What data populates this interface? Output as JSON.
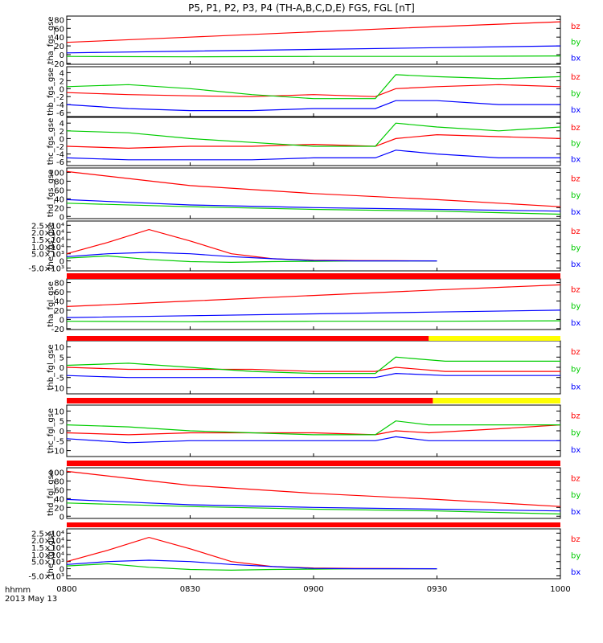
{
  "title": "P5, P1, P2, P3, P4 (TH-A,B,C,D,E) FGS, FGL [nT]",
  "time_axis": {
    "ticks": [
      "0800",
      "0830",
      "0900",
      "0930",
      "1000"
    ],
    "label_line1": "hhmm",
    "label_line2": "2013 May 13"
  },
  "colors": {
    "bz": "#ff0000",
    "by": "#00cc00",
    "bx": "#0000ff",
    "bar_red": "#ff0000",
    "bar_yellow": "#ffff00",
    "frame": "#000000"
  },
  "legend": [
    "bz",
    "by",
    "bx"
  ],
  "chart_data": [
    {
      "type": "line",
      "ylabel": "tha_fgs_gse",
      "ticks": [
        "80",
        "60",
        "40",
        "20",
        "0",
        "-20"
      ],
      "ylim": [
        -22,
        88
      ],
      "x": [
        800,
        830,
        900,
        930,
        1000
      ],
      "series": [
        {
          "name": "bz",
          "values": [
            28,
            40,
            52,
            64,
            75
          ]
        },
        {
          "name": "by",
          "values": [
            -4,
            -5,
            -4,
            -4,
            -3
          ]
        },
        {
          "name": "bx",
          "values": [
            4,
            8,
            12,
            16,
            20
          ]
        }
      ]
    },
    {
      "type": "line",
      "ylabel": "thb_fgs_gse",
      "ticks": [
        "4",
        "2",
        "0",
        "-2",
        "-4",
        "-6"
      ],
      "ylim": [
        -7,
        5.5
      ],
      "x": [
        800,
        815,
        830,
        845,
        900,
        915,
        920,
        930,
        945,
        1000
      ],
      "series": [
        {
          "name": "bz",
          "values": [
            -1,
            -1.5,
            -1.8,
            -2,
            -1.5,
            -2,
            0,
            0.5,
            1,
            0.5
          ]
        },
        {
          "name": "by",
          "values": [
            0.5,
            1,
            0,
            -1.5,
            -2.5,
            -2.5,
            3.5,
            3,
            2.5,
            3
          ]
        },
        {
          "name": "bx",
          "values": [
            -4,
            -5,
            -5.5,
            -5.5,
            -5,
            -5,
            -3,
            -3,
            -4,
            -4
          ]
        }
      ]
    },
    {
      "type": "line",
      "ylabel": "thc_fgs_gse",
      "ticks": [
        "4",
        "2",
        "0",
        "-2",
        "-4",
        "-6"
      ],
      "ylim": [
        -7,
        5.5
      ],
      "x": [
        800,
        815,
        830,
        845,
        900,
        915,
        920,
        930,
        945,
        1000
      ],
      "series": [
        {
          "name": "bz",
          "values": [
            -2,
            -2.5,
            -2,
            -2,
            -1.5,
            -2,
            0,
            1,
            0.5,
            0
          ]
        },
        {
          "name": "by",
          "values": [
            2,
            1.5,
            0,
            -1,
            -2,
            -2,
            4,
            3,
            2,
            3
          ]
        },
        {
          "name": "bx",
          "values": [
            -5,
            -5.5,
            -5.5,
            -5.5,
            -5,
            -5,
            -3,
            -4,
            -5,
            -5
          ]
        }
      ]
    },
    {
      "type": "line",
      "ylabel": "thd_fgs_gse",
      "ticks": [
        "100",
        "80",
        "60",
        "40",
        "20",
        "0"
      ],
      "ylim": [
        -5,
        110
      ],
      "x": [
        800,
        830,
        900,
        930,
        1000
      ],
      "series": [
        {
          "name": "bz",
          "values": [
            102,
            70,
            52,
            38,
            22
          ]
        },
        {
          "name": "by",
          "values": [
            30,
            22,
            16,
            12,
            5
          ]
        },
        {
          "name": "bx",
          "values": [
            38,
            26,
            20,
            16,
            12
          ]
        }
      ]
    },
    {
      "type": "line",
      "ylabel": "the_fgs_gse",
      "ticks": [
        "2.5×10⁴",
        "2.0×10⁴",
        "1.5×10⁴",
        "1.0×10⁴",
        "5.0×10³",
        "0",
        "-5.0×10³"
      ],
      "ylim": [
        -7000,
        28000
      ],
      "x": [
        800,
        810,
        820,
        830,
        840,
        850,
        900,
        910,
        920,
        930
      ],
      "series": [
        {
          "name": "bz",
          "values": [
            5000,
            13000,
            22000,
            14000,
            5000,
            1500,
            500,
            200,
            100,
            0
          ]
        },
        {
          "name": "by",
          "values": [
            2000,
            3500,
            1000,
            -500,
            -1000,
            -500,
            -300,
            0,
            0,
            0
          ]
        },
        {
          "name": "bx",
          "values": [
            3000,
            5000,
            6000,
            5000,
            3000,
            1500,
            200,
            0,
            0,
            0
          ]
        }
      ]
    },
    {
      "type": "line",
      "ylabel": "tha_fgl_gse",
      "ticks": [
        "80",
        "60",
        "40",
        "20",
        "0",
        "-20"
      ],
      "ylim": [
        -22,
        88
      ],
      "x": [
        800,
        830,
        900,
        930,
        1000
      ],
      "series": [
        {
          "name": "bz",
          "values": [
            28,
            40,
            52,
            64,
            75
          ]
        },
        {
          "name": "by",
          "values": [
            -4,
            -5,
            -4,
            -4,
            -3
          ]
        },
        {
          "name": "bx",
          "values": [
            4,
            8,
            12,
            16,
            20
          ]
        }
      ]
    },
    {
      "type": "line",
      "ylabel": "thb_fgl_gse",
      "ticks": [
        "10",
        "5",
        "0",
        "-5",
        "-10"
      ],
      "ylim": [
        -13,
        13
      ],
      "x": [
        800,
        815,
        830,
        845,
        900,
        915,
        920,
        932,
        945,
        1000
      ],
      "series": [
        {
          "name": "bz",
          "values": [
            0,
            -1,
            -1,
            -1,
            -2,
            -2,
            0,
            -2,
            -2,
            -2
          ]
        },
        {
          "name": "by",
          "values": [
            1,
            2,
            0,
            -2,
            -3,
            -3,
            5,
            3,
            3,
            3
          ]
        },
        {
          "name": "bx",
          "values": [
            -4,
            -5,
            -5,
            -5,
            -5,
            -5,
            -3,
            -4,
            -4,
            -4
          ]
        }
      ]
    },
    {
      "type": "line",
      "ylabel": "thc_fgl_gse",
      "ticks": [
        "10",
        "5",
        "0",
        "-5",
        "-10"
      ],
      "ylim": [
        -13,
        13
      ],
      "x": [
        800,
        815,
        830,
        845,
        900,
        915,
        920,
        928,
        945,
        1000
      ],
      "series": [
        {
          "name": "bz",
          "values": [
            -1,
            -2,
            -1,
            -1,
            -1,
            -2,
            0,
            -1,
            1,
            3
          ]
        },
        {
          "name": "by",
          "values": [
            3,
            2,
            0,
            -1,
            -2,
            -2,
            5,
            3,
            3,
            3
          ]
        },
        {
          "name": "bx",
          "values": [
            -4,
            -6,
            -5,
            -5,
            -5,
            -5,
            -3,
            -5,
            -5,
            -5
          ]
        }
      ]
    },
    {
      "type": "line",
      "ylabel": "thd_fgl_gse",
      "ticks": [
        "100",
        "80",
        "60",
        "40",
        "20",
        "0"
      ],
      "ylim": [
        -5,
        110
      ],
      "x": [
        800,
        830,
        900,
        930,
        1000
      ],
      "series": [
        {
          "name": "bz",
          "values": [
            102,
            70,
            52,
            38,
            22
          ]
        },
        {
          "name": "by",
          "values": [
            30,
            22,
            16,
            12,
            5
          ]
        },
        {
          "name": "bx",
          "values": [
            38,
            26,
            20,
            16,
            12
          ]
        }
      ]
    },
    {
      "type": "line",
      "ylabel": "the_fgl_gse",
      "ticks": [
        "2.5×10⁴",
        "2.0×10⁴",
        "1.5×10⁴",
        "1.0×10⁴",
        "5.0×10³",
        "0",
        "-5.0×10³"
      ],
      "ylim": [
        -7000,
        28000
      ],
      "x": [
        800,
        810,
        820,
        830,
        840,
        850,
        900,
        910,
        920,
        930
      ],
      "series": [
        {
          "name": "bz",
          "values": [
            5000,
            13000,
            22000,
            14000,
            5000,
            1500,
            500,
            200,
            100,
            0
          ]
        },
        {
          "name": "by",
          "values": [
            2000,
            3500,
            1000,
            -500,
            -1000,
            -500,
            -300,
            0,
            0,
            0
          ]
        },
        {
          "name": "bx",
          "values": [
            3000,
            5000,
            6000,
            5000,
            3000,
            1500,
            200,
            0,
            0,
            0
          ]
        }
      ]
    }
  ],
  "mode_bars": [
    {
      "segments": [
        {
          "from": 800,
          "to": 1000,
          "color": "red"
        }
      ]
    },
    {
      "segments": [
        {
          "from": 800,
          "to": 928,
          "color": "red"
        },
        {
          "from": 928,
          "to": 1000,
          "color": "yellow"
        }
      ]
    },
    {
      "segments": [
        {
          "from": 800,
          "to": 929,
          "color": "red"
        },
        {
          "from": 929,
          "to": 1000,
          "color": "yellow"
        }
      ]
    },
    {
      "segments": [
        {
          "from": 800,
          "to": 1000,
          "color": "red"
        }
      ]
    },
    {
      "segments": [
        {
          "from": 800,
          "to": 1000,
          "color": "red"
        }
      ]
    }
  ]
}
